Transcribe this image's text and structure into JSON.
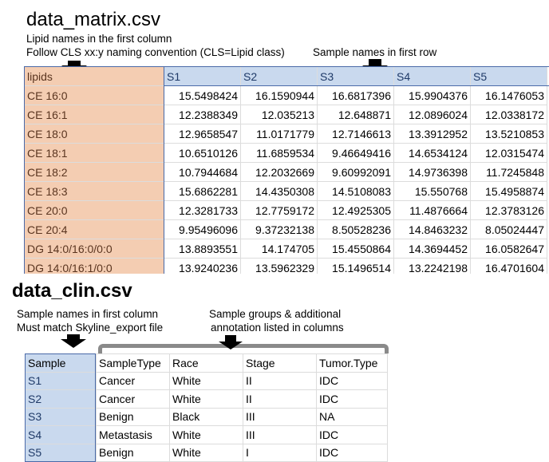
{
  "matrix": {
    "title": "data_matrix.csv",
    "note_line1": "Lipid names in the first column",
    "note_line2": "Follow CLS xx:y naming convention (CLS=Lipid class)",
    "note_samples": "Sample names in first row",
    "header": [
      "lipids",
      "S1",
      "S2",
      "S3",
      "S4",
      "S5"
    ],
    "rows": [
      [
        "CE 16:0",
        "15.5498424",
        "16.1590944",
        "16.6817396",
        "15.9904376",
        "16.1476053"
      ],
      [
        "CE 16:1",
        "12.2388349",
        "12.035213",
        "12.648871",
        "12.0896024",
        "12.0338172"
      ],
      [
        "CE 18:0",
        "12.9658547",
        "11.0171779",
        "12.7146613",
        "13.3912952",
        "13.5210853"
      ],
      [
        "CE 18:1",
        "10.6510126",
        "11.6859534",
        "9.46649416",
        "14.6534124",
        "12.0315474"
      ],
      [
        "CE 18:2",
        "10.7944684",
        "12.2032669",
        "9.60992091",
        "14.9736398",
        "11.7245848"
      ],
      [
        "CE 18:3",
        "15.6862281",
        "14.4350308",
        "14.5108083",
        "15.550768",
        "15.4958874"
      ],
      [
        "CE 20:0",
        "12.3281733",
        "12.7759172",
        "12.4925305",
        "11.4876664",
        "12.3783126"
      ],
      [
        "CE 20:4",
        "9.95496096",
        "9.37232138",
        "8.50528236",
        "14.8463232",
        "8.05024447"
      ],
      [
        "DG 14:0/16:0/0:0",
        "13.8893551",
        "14.174705",
        "15.4550864",
        "14.3694452",
        "16.0582647"
      ],
      [
        "DG 14:0/16:1/0:0",
        "13.9240236",
        "13.5962329",
        "15.1496514",
        "13.2242198",
        "16.4701604"
      ]
    ]
  },
  "clin": {
    "title": "data_clin.csv",
    "note_left_line1": "Sample names in first column",
    "note_left_line2": "Must match Skyline_export file",
    "note_right_line1": "Sample groups & additional",
    "note_right_line2": "annotation listed in columns",
    "header": [
      "Sample",
      "SampleType",
      "Race",
      "Stage",
      "Tumor.Type"
    ],
    "rows": [
      [
        "S1",
        "Cancer",
        "White",
        "II",
        "IDC"
      ],
      [
        "S2",
        "Cancer",
        "White",
        "II",
        "IDC"
      ],
      [
        "S3",
        "Benign",
        "Black",
        "III",
        "NA"
      ],
      [
        "S4",
        "Metastasis",
        "White",
        "III",
        "IDC"
      ],
      [
        "S5",
        "Benign",
        "White",
        "I",
        "IDC"
      ]
    ]
  },
  "colors": {
    "lipid_fill": "#f4cdb2",
    "sample_fill": "#c9d9ee",
    "outline": "#4a6aa8",
    "bracket": "#8a8a8a"
  }
}
